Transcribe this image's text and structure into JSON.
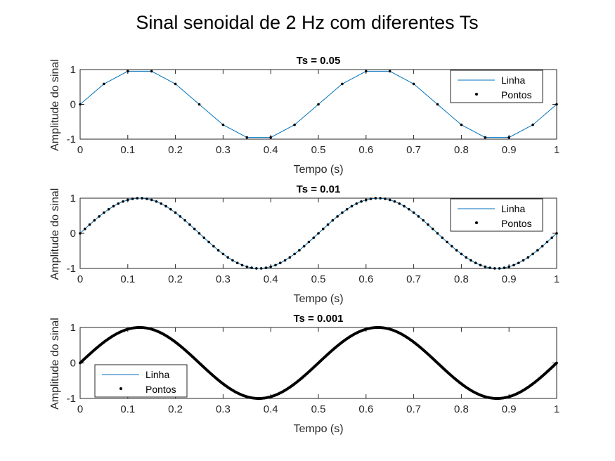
{
  "figure": {
    "title": "Sinal senoidal de 2 Hz com diferentes Ts"
  },
  "colors": {
    "line": "#0072BD",
    "points": "#000000",
    "axes": "#262626",
    "background": "#ffffff"
  },
  "chart_data": [
    {
      "type": "line",
      "title": "Ts = 0.05",
      "xlabel": "Tempo (s)",
      "ylabel": "Amplitude do sinal",
      "xlim": [
        0,
        1
      ],
      "ylim": [
        -1,
        1
      ],
      "xticks": [
        "0",
        "0.1",
        "0.2",
        "0.3",
        "0.4",
        "0.5",
        "0.6",
        "0.7",
        "0.8",
        "0.9",
        "1"
      ],
      "yticks": [
        "-1",
        "0",
        "1"
      ],
      "grid": false,
      "legend_position": "top-right",
      "signal": {
        "frequency_hz": 2,
        "ts": 0.05,
        "t_start": 0,
        "t_end": 1
      },
      "series": [
        {
          "name": "Linha",
          "style": "line"
        },
        {
          "name": "Pontos",
          "style": "points"
        }
      ],
      "x": [
        0,
        0.05,
        0.1,
        0.15,
        0.2,
        0.25,
        0.3,
        0.35,
        0.4,
        0.45,
        0.5,
        0.55,
        0.6,
        0.65,
        0.7,
        0.75,
        0.8,
        0.85,
        0.9,
        0.95,
        1
      ],
      "y": [
        0,
        0.588,
        0.951,
        0.951,
        0.588,
        0,
        -0.588,
        -0.951,
        -0.951,
        -0.588,
        0,
        0.588,
        0.951,
        0.951,
        0.588,
        0,
        -0.588,
        -0.951,
        -0.951,
        -0.588,
        0
      ]
    },
    {
      "type": "line",
      "title": "Ts = 0.01",
      "xlabel": "Tempo (s)",
      "ylabel": "Amplitude do sinal",
      "xlim": [
        0,
        1
      ],
      "ylim": [
        -1,
        1
      ],
      "xticks": [
        "0",
        "0.1",
        "0.2",
        "0.3",
        "0.4",
        "0.5",
        "0.6",
        "0.7",
        "0.8",
        "0.9",
        "1"
      ],
      "yticks": [
        "-1",
        "0",
        "1"
      ],
      "grid": false,
      "legend_position": "top-right",
      "signal": {
        "frequency_hz": 2,
        "ts": 0.01,
        "t_start": 0,
        "t_end": 1
      },
      "series": [
        {
          "name": "Linha",
          "style": "line"
        },
        {
          "name": "Pontos",
          "style": "points"
        }
      ]
    },
    {
      "type": "line",
      "title": "Ts = 0.001",
      "xlabel": "Tempo (s)",
      "ylabel": "Amplitude do sinal",
      "xlim": [
        0,
        1
      ],
      "ylim": [
        -1,
        1
      ],
      "xticks": [
        "0",
        "0.1",
        "0.2",
        "0.3",
        "0.4",
        "0.5",
        "0.6",
        "0.7",
        "0.8",
        "0.9",
        "1"
      ],
      "yticks": [
        "-1",
        "0",
        "1"
      ],
      "grid": false,
      "legend_position": "bottom-left",
      "signal": {
        "frequency_hz": 2,
        "ts": 0.001,
        "t_start": 0,
        "t_end": 1
      },
      "series": [
        {
          "name": "Linha",
          "style": "line"
        },
        {
          "name": "Pontos",
          "style": "points"
        }
      ]
    }
  ]
}
